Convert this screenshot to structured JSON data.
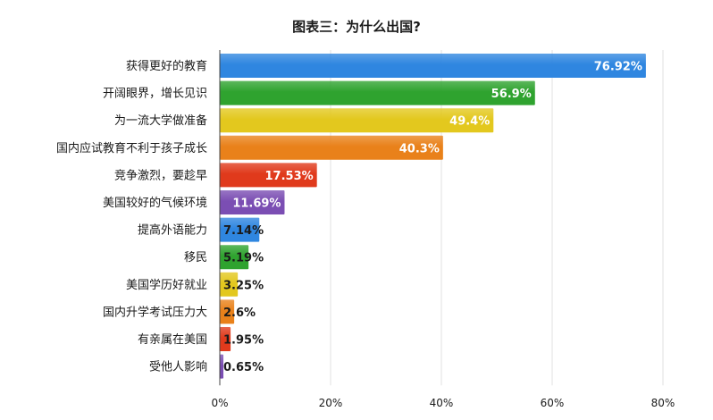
{
  "chart_data": {
    "type": "bar",
    "orientation": "horizontal",
    "title": "图表三：为什么出国?",
    "categories": [
      "获得更好的教育",
      "开阔眼界，增长见识",
      "为一流大学做准备",
      "国内应试教育不利于孩子成长",
      "竞争激烈，要趁早",
      "美国较好的气候环境",
      "提高外语能力",
      "移民",
      "美国学历好就业",
      "国内升学考试压力大",
      "有亲属在美国",
      "受他人影响"
    ],
    "values": [
      76.92,
      56.9,
      49.4,
      40.3,
      17.53,
      11.69,
      7.14,
      5.19,
      3.25,
      2.6,
      1.95,
      0.65
    ],
    "value_labels": [
      "76.92%",
      "56.9%",
      "49.4%",
      "40.3%",
      "17.53%",
      "11.69%",
      "7.14%",
      "5.19%",
      "3.25%",
      "2.6%",
      "1.95%",
      "0.65%"
    ],
    "bar_colors": [
      "#2f86e0",
      "#2fa32f",
      "#e3c81e",
      "#e9811a",
      "#e03a1c",
      "#7b4eb3",
      "#2f86e0",
      "#2fa32f",
      "#e3c81e",
      "#e9811a",
      "#e03a1c",
      "#7b4eb3"
    ],
    "xlim": [
      0,
      80
    ],
    "xticks": [
      "0%",
      "20%",
      "40%",
      "60%",
      "80%"
    ],
    "xlabel": "",
    "ylabel": "",
    "grid": true
  }
}
